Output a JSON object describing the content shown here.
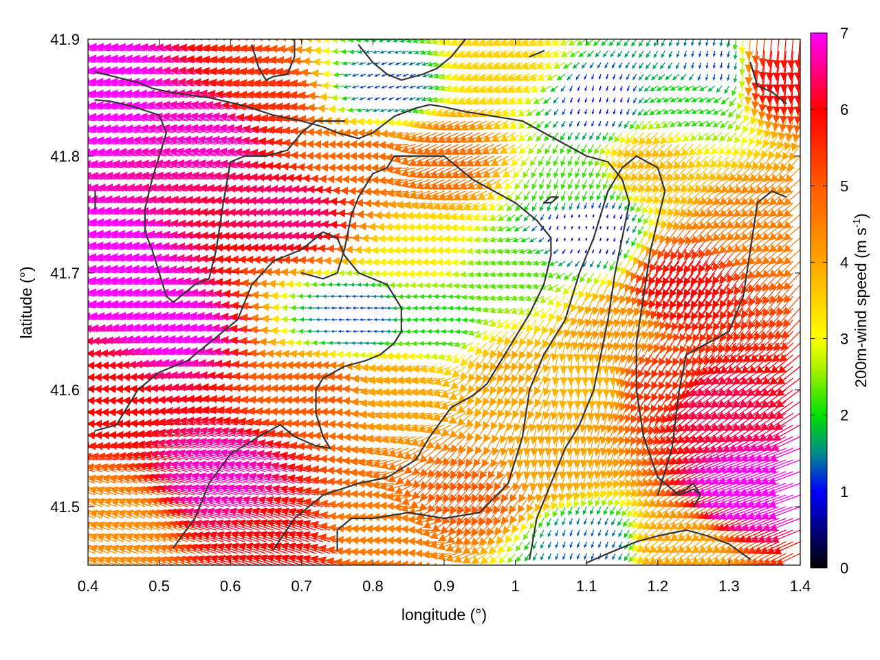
{
  "chart_data": {
    "type": "vector-field",
    "title": "",
    "xlabel": "longitude (°)",
    "ylabel": "latitude (°)",
    "colorbar_label": "200m-wind speed (m s",
    "colorbar_label_sup": "-1",
    "colorbar_label_close": ")",
    "xlim": [
      0.4,
      1.4
    ],
    "ylim": [
      41.45,
      41.9
    ],
    "xticks": [
      "0.4",
      "0.5",
      "0.6",
      "0.7",
      "0.8",
      "0.9",
      "1",
      "1.1",
      "1.2",
      "1.3",
      "1.4"
    ],
    "yticks": [
      "41.5",
      "41.6",
      "41.7",
      "41.8",
      "41.9"
    ],
    "colorbar_ticks": [
      "0",
      "1",
      "2",
      "3",
      "4",
      "5",
      "6",
      "7"
    ],
    "colorbar_range": [
      0,
      7
    ],
    "grid": false,
    "arrow_grid": {
      "dx": 0.01,
      "dy": 0.01
    },
    "colormap": [
      {
        "value": 0,
        "color": "#000000"
      },
      {
        "value": 1,
        "color": "#0000ff"
      },
      {
        "value": 1.5,
        "color": "#008a8a"
      },
      {
        "value": 2,
        "color": "#00e000"
      },
      {
        "value": 2.6,
        "color": "#a8f000"
      },
      {
        "value": 3,
        "color": "#ffff00"
      },
      {
        "value": 4,
        "color": "#ffa500"
      },
      {
        "value": 5,
        "color": "#ff5a00"
      },
      {
        "value": 6,
        "color": "#ff0000"
      },
      {
        "value": 7,
        "color": "#ff00ff"
      }
    ],
    "wind_field_controls": [
      {
        "lon": 0.45,
        "lat": 41.85,
        "speed": 7.2,
        "dir_deg": 172
      },
      {
        "lon": 0.45,
        "lat": 41.7,
        "speed": 7.2,
        "dir_deg": 172
      },
      {
        "lon": 0.45,
        "lat": 41.6,
        "speed": 6.0,
        "dir_deg": 178
      },
      {
        "lon": 0.45,
        "lat": 41.48,
        "speed": 4.3,
        "dir_deg": 160
      },
      {
        "lon": 0.55,
        "lat": 41.65,
        "speed": 7.0,
        "dir_deg": 172
      },
      {
        "lon": 0.6,
        "lat": 41.82,
        "speed": 6.8,
        "dir_deg": 170
      },
      {
        "lon": 0.62,
        "lat": 41.52,
        "speed": 6.8,
        "dir_deg": 165
      },
      {
        "lon": 0.68,
        "lat": 41.85,
        "speed": 5.5,
        "dir_deg": 172
      },
      {
        "lon": 0.7,
        "lat": 41.47,
        "speed": 6.0,
        "dir_deg": 162
      },
      {
        "lon": 0.72,
        "lat": 41.75,
        "speed": 6.5,
        "dir_deg": 175
      },
      {
        "lon": 0.75,
        "lat": 41.6,
        "speed": 5.0,
        "dir_deg": 175
      },
      {
        "lon": 0.78,
        "lat": 41.66,
        "speed": 1.2,
        "dir_deg": 180
      },
      {
        "lon": 0.8,
        "lat": 41.8,
        "speed": 4.8,
        "dir_deg": 180
      },
      {
        "lon": 0.82,
        "lat": 41.86,
        "speed": 1.2,
        "dir_deg": 200
      },
      {
        "lon": 0.82,
        "lat": 41.48,
        "speed": 4.5,
        "dir_deg": 175
      },
      {
        "lon": 0.85,
        "lat": 41.6,
        "speed": 4.0,
        "dir_deg": 190
      },
      {
        "lon": 0.88,
        "lat": 41.72,
        "speed": 3.2,
        "dir_deg": 185
      },
      {
        "lon": 0.9,
        "lat": 41.66,
        "speed": 2.0,
        "dir_deg": 180
      },
      {
        "lon": 0.92,
        "lat": 41.8,
        "speed": 4.8,
        "dir_deg": 205
      },
      {
        "lon": 0.95,
        "lat": 41.52,
        "speed": 5.0,
        "dir_deg": 230
      },
      {
        "lon": 1.0,
        "lat": 41.7,
        "speed": 2.3,
        "dir_deg": 195
      },
      {
        "lon": 1.0,
        "lat": 41.62,
        "speed": 4.0,
        "dir_deg": 235
      },
      {
        "lon": 1.0,
        "lat": 41.88,
        "speed": 3.5,
        "dir_deg": 200
      },
      {
        "lon": 1.05,
        "lat": 41.55,
        "speed": 4.0,
        "dir_deg": 260
      },
      {
        "lon": 1.08,
        "lat": 41.78,
        "speed": 2.2,
        "dir_deg": 250
      },
      {
        "lon": 1.1,
        "lat": 41.74,
        "speed": 0.6,
        "dir_deg": 260
      },
      {
        "lon": 1.12,
        "lat": 41.85,
        "speed": 1.0,
        "dir_deg": 255
      },
      {
        "lon": 1.1,
        "lat": 41.62,
        "speed": 3.8,
        "dir_deg": 265
      },
      {
        "lon": 1.1,
        "lat": 41.47,
        "speed": 1.3,
        "dir_deg": 250
      },
      {
        "lon": 1.15,
        "lat": 41.66,
        "speed": 4.2,
        "dir_deg": 250
      },
      {
        "lon": 1.2,
        "lat": 41.8,
        "speed": 3.8,
        "dir_deg": 225
      },
      {
        "lon": 1.22,
        "lat": 41.62,
        "speed": 5.5,
        "dir_deg": 240
      },
      {
        "lon": 1.25,
        "lat": 41.7,
        "speed": 6.0,
        "dir_deg": 235
      },
      {
        "lon": 1.25,
        "lat": 41.85,
        "speed": 2.0,
        "dir_deg": 205
      },
      {
        "lon": 1.28,
        "lat": 41.88,
        "speed": 1.2,
        "dir_deg": 260
      },
      {
        "lon": 1.3,
        "lat": 41.6,
        "speed": 6.3,
        "dir_deg": 215
      },
      {
        "lon": 1.35,
        "lat": 41.75,
        "speed": 4.5,
        "dir_deg": 220
      },
      {
        "lon": 1.35,
        "lat": 41.52,
        "speed": 7.0,
        "dir_deg": 200
      },
      {
        "lon": 1.37,
        "lat": 41.88,
        "speed": 6.0,
        "dir_deg": 265
      },
      {
        "lon": 1.25,
        "lat": 41.47,
        "speed": 4.0,
        "dir_deg": 215
      }
    ],
    "terrain_contours": [
      {
        "name": "contour-1",
        "points": [
          [
            0.41,
            41.872
          ],
          [
            0.47,
            41.863
          ],
          [
            0.49,
            41.858
          ],
          [
            0.52,
            41.854
          ],
          [
            0.57,
            41.85
          ],
          [
            0.62,
            41.843
          ],
          [
            0.66,
            41.835
          ],
          [
            0.7,
            41.83
          ],
          [
            0.73,
            41.825
          ],
          [
            0.75,
            41.82
          ],
          [
            0.78,
            41.815
          ],
          [
            0.8,
            41.82
          ],
          [
            0.83,
            41.834
          ],
          [
            0.86,
            41.841
          ],
          [
            0.88,
            41.844
          ],
          [
            0.9,
            41.842
          ],
          [
            0.93,
            41.838
          ],
          [
            0.99,
            41.832
          ],
          [
            1.01,
            41.83
          ],
          [
            1.04,
            41.82
          ],
          [
            1.07,
            41.81
          ],
          [
            1.1,
            41.8
          ],
          [
            1.13,
            41.795
          ],
          [
            1.15,
            41.78
          ],
          [
            1.16,
            41.76
          ],
          [
            1.15,
            41.73
          ],
          [
            1.14,
            41.7
          ],
          [
            1.13,
            41.66
          ],
          [
            1.11,
            41.6
          ],
          [
            1.09,
            41.57
          ],
          [
            1.07,
            41.55
          ],
          [
            1.05,
            41.52
          ],
          [
            1.03,
            41.49
          ],
          [
            1.02,
            41.455
          ]
        ]
      },
      {
        "name": "contour-2",
        "points": [
          [
            0.41,
            41.848
          ],
          [
            0.43,
            41.847
          ],
          [
            0.46,
            41.843
          ],
          [
            0.5,
            41.835
          ],
          [
            0.51,
            41.82
          ],
          [
            0.5,
            41.8
          ],
          [
            0.49,
            41.78
          ],
          [
            0.48,
            41.755
          ],
          [
            0.48,
            41.735
          ],
          [
            0.49,
            41.72
          ],
          [
            0.5,
            41.7
          ],
          [
            0.51,
            41.68
          ],
          [
            0.52,
            41.675
          ],
          [
            0.54,
            41.685
          ],
          [
            0.55,
            41.69
          ],
          [
            0.57,
            41.695
          ],
          [
            0.58,
            41.72
          ],
          [
            0.59,
            41.76
          ],
          [
            0.6,
            41.795
          ],
          [
            0.62,
            41.8
          ],
          [
            0.65,
            41.8
          ],
          [
            0.68,
            41.805
          ],
          [
            0.7,
            41.82
          ],
          [
            0.72,
            41.83
          ],
          [
            0.75,
            41.83
          ],
          [
            0.76,
            41.83
          ]
        ]
      },
      {
        "name": "contour-3",
        "points": [
          [
            0.41,
            41.565
          ],
          [
            0.44,
            41.57
          ],
          [
            0.47,
            41.6
          ],
          [
            0.5,
            41.615
          ],
          [
            0.54,
            41.625
          ],
          [
            0.58,
            41.645
          ],
          [
            0.61,
            41.66
          ],
          [
            0.63,
            41.69
          ],
          [
            0.66,
            41.71
          ],
          [
            0.7,
            41.72
          ],
          [
            0.73,
            41.735
          ],
          [
            0.75,
            41.73
          ],
          [
            0.76,
            41.715
          ],
          [
            0.78,
            41.7
          ],
          [
            0.8,
            41.695
          ],
          [
            0.82,
            41.69
          ],
          [
            0.84,
            41.67
          ],
          [
            0.84,
            41.65
          ],
          [
            0.83,
            41.64
          ],
          [
            0.81,
            41.63
          ],
          [
            0.79,
            41.625
          ],
          [
            0.76,
            41.62
          ],
          [
            0.73,
            41.61
          ],
          [
            0.72,
            41.6
          ],
          [
            0.72,
            41.58
          ],
          [
            0.73,
            41.56
          ],
          [
            0.74,
            41.55
          ],
          [
            0.72,
            41.552
          ],
          [
            0.69,
            41.56
          ],
          [
            0.67,
            41.57
          ],
          [
            0.64,
            41.56
          ],
          [
            0.6,
            41.545
          ],
          [
            0.57,
            41.52
          ],
          [
            0.55,
            41.49
          ],
          [
            0.52,
            41.465
          ]
        ]
      },
      {
        "name": "contour-4",
        "points": [
          [
            0.66,
            41.463
          ],
          [
            0.69,
            41.49
          ],
          [
            0.73,
            41.51
          ],
          [
            0.78,
            41.52
          ],
          [
            0.82,
            41.525
          ],
          [
            0.86,
            41.54
          ],
          [
            0.88,
            41.56
          ],
          [
            0.91,
            41.585
          ],
          [
            0.94,
            41.595
          ],
          [
            0.96,
            41.605
          ],
          [
            0.98,
            41.625
          ],
          [
            1.0,
            41.645
          ],
          [
            1.02,
            41.665
          ],
          [
            1.04,
            41.69
          ],
          [
            1.05,
            41.715
          ],
          [
            1.05,
            41.73
          ],
          [
            1.03,
            41.745
          ],
          [
            1.0,
            41.76
          ],
          [
            0.97,
            41.77
          ],
          [
            0.94,
            41.78
          ],
          [
            0.92,
            41.79
          ],
          [
            0.9,
            41.8
          ],
          [
            0.87,
            41.8
          ],
          [
            0.85,
            41.8
          ],
          [
            0.83,
            41.8
          ],
          [
            0.82,
            41.79
          ],
          [
            0.8,
            41.785
          ],
          [
            0.79,
            41.775
          ],
          [
            0.78,
            41.765
          ],
          [
            0.77,
            41.75
          ],
          [
            0.76,
            41.72
          ],
          [
            0.75,
            41.7
          ],
          [
            0.73,
            41.695
          ],
          [
            0.7,
            41.7
          ]
        ]
      },
      {
        "name": "contour-5",
        "points": [
          [
            0.75,
            41.463
          ],
          [
            0.75,
            41.48
          ],
          [
            0.77,
            41.49
          ],
          [
            0.8,
            41.49
          ],
          [
            0.85,
            41.495
          ],
          [
            0.9,
            41.49
          ],
          [
            0.95,
            41.495
          ],
          [
            0.99,
            41.52
          ],
          [
            1.01,
            41.56
          ],
          [
            1.02,
            41.6
          ],
          [
            1.04,
            41.63
          ],
          [
            1.07,
            41.66
          ],
          [
            1.09,
            41.7
          ],
          [
            1.11,
            41.73
          ],
          [
            1.12,
            41.75
          ],
          [
            1.13,
            41.77
          ],
          [
            1.15,
            41.79
          ],
          [
            1.17,
            41.8
          ],
          [
            1.2,
            41.79
          ],
          [
            1.21,
            41.77
          ],
          [
            1.2,
            41.745
          ],
          [
            1.19,
            41.72
          ],
          [
            1.18,
            41.68
          ],
          [
            1.17,
            41.64
          ],
          [
            1.17,
            41.6
          ],
          [
            1.18,
            41.56
          ],
          [
            1.2,
            41.525
          ],
          [
            1.23,
            41.51
          ],
          [
            1.25,
            41.515
          ],
          [
            1.26,
            41.51
          ]
        ]
      },
      {
        "name": "contour-6",
        "points": [
          [
            1.1,
            41.452
          ],
          [
            1.13,
            41.46
          ],
          [
            1.17,
            41.47
          ],
          [
            1.2,
            41.475
          ],
          [
            1.24,
            41.48
          ],
          [
            1.27,
            41.475
          ],
          [
            1.3,
            41.468
          ],
          [
            1.33,
            41.455
          ]
        ]
      },
      {
        "name": "contour-7",
        "points": [
          [
            1.2,
            41.51
          ],
          [
            1.22,
            41.55
          ],
          [
            1.23,
            41.6
          ],
          [
            1.24,
            41.63
          ],
          [
            1.27,
            41.64
          ],
          [
            1.3,
            41.65
          ],
          [
            1.32,
            41.68
          ],
          [
            1.33,
            41.72
          ],
          [
            1.34,
            41.76
          ],
          [
            1.36,
            41.77
          ],
          [
            1.38,
            41.765
          ]
        ]
      },
      {
        "name": "contour-8",
        "points": [
          [
            1.33,
            41.88
          ],
          [
            1.34,
            41.86
          ],
          [
            1.36,
            41.855
          ],
          [
            1.37,
            41.85
          ],
          [
            1.38,
            41.845
          ]
        ]
      },
      {
        "name": "contour-9",
        "points": [
          [
            0.63,
            41.895
          ],
          [
            0.64,
            41.875
          ],
          [
            0.65,
            41.865
          ],
          [
            0.66,
            41.868
          ],
          [
            0.68,
            41.87
          ],
          [
            0.69,
            41.885
          ],
          [
            0.69,
            41.9
          ]
        ]
      },
      {
        "name": "contour-10",
        "points": [
          [
            0.78,
            41.895
          ],
          [
            0.8,
            41.88
          ],
          [
            0.82,
            41.87
          ],
          [
            0.84,
            41.865
          ],
          [
            0.87,
            41.87
          ],
          [
            0.89,
            41.875
          ],
          [
            0.91,
            41.885
          ],
          [
            0.93,
            41.9
          ]
        ]
      },
      {
        "name": "contour-11",
        "points": [
          [
            1.22,
            41.51
          ],
          [
            1.24,
            41.515
          ],
          [
            1.25,
            41.52
          ],
          [
            1.26,
            41.51
          ],
          [
            1.25,
            41.5
          ]
        ]
      },
      {
        "name": "contour-12",
        "points": [
          [
            1.04,
            41.76
          ],
          [
            1.05,
            41.765
          ],
          [
            1.06,
            41.765
          ],
          [
            1.05,
            41.76
          ],
          [
            1.04,
            41.76
          ]
        ]
      },
      {
        "name": "contour-13",
        "points": [
          [
            0.41,
            41.77
          ],
          [
            0.41,
            41.755
          ]
        ]
      },
      {
        "name": "contour-14",
        "points": [
          [
            1.02,
            41.885
          ],
          [
            1.04,
            41.89
          ]
        ]
      }
    ]
  }
}
